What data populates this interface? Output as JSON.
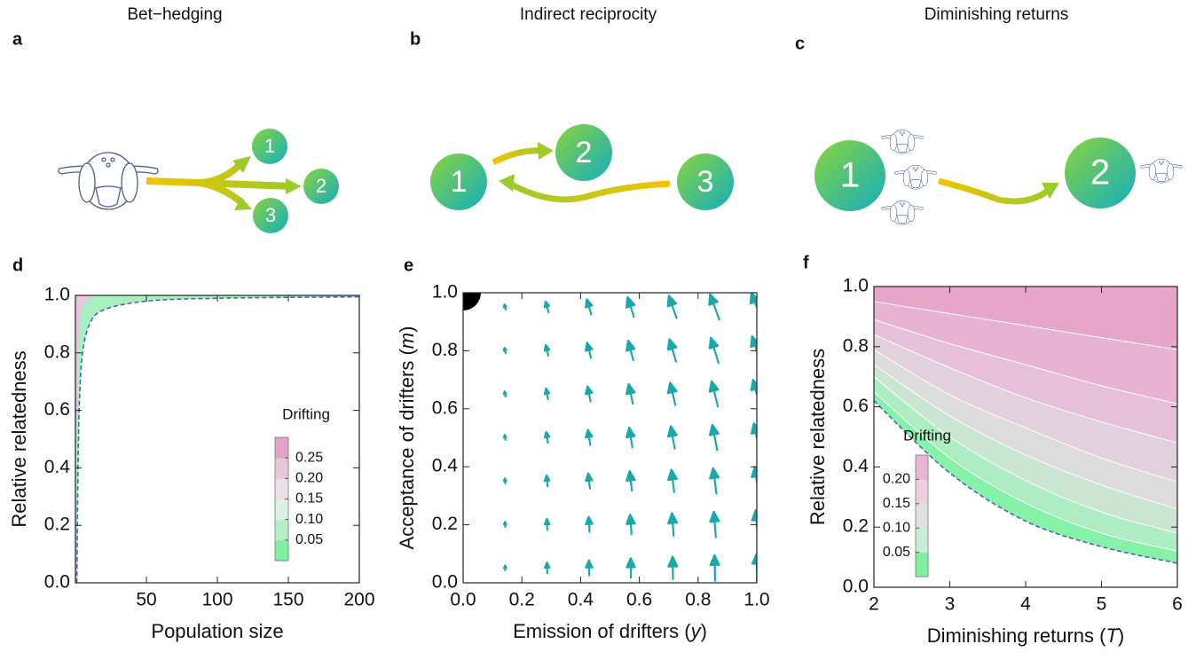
{
  "diagrams": [
    {
      "label": "a",
      "title": "Bet−hedging",
      "nodes": [
        "1",
        "2",
        "3"
      ]
    },
    {
      "label": "b",
      "title": "Indirect reciprocity",
      "nodes": [
        "1",
        "2",
        "3"
      ]
    },
    {
      "label": "c",
      "title": "Diminishing returns",
      "nodes": [
        "1",
        "2"
      ]
    }
  ],
  "chart_data": [
    {
      "type": "contour",
      "panel": "d",
      "x_label": [
        "Population size"
      ],
      "y_label": [
        "Relative relatedness"
      ],
      "x": [
        1,
        2,
        3,
        5,
        10,
        20,
        50,
        100,
        200
      ],
      "series": [
        {
          "color": "#a8f0c0",
          "dashed": true,
          "values": [
            0,
            0.45,
            0.65,
            0.8,
            0.9,
            0.95,
            0.98,
            0.99,
            0.995
          ]
        },
        {
          "color": "#ecc4dc",
          "values": [
            0.55,
            0.8,
            0.9,
            0.96,
            0.99,
            1,
            1,
            1,
            1
          ]
        }
      ],
      "xlim": [
        0,
        200
      ],
      "xticks": [
        50,
        100,
        150,
        200
      ],
      "ylim": [
        0,
        1
      ],
      "yticks": [
        {
          "value": 0,
          "label": "0.0"
        },
        0.2,
        0.4,
        0.6,
        0.8,
        {
          "value": 1,
          "label": "1.0"
        }
      ],
      "colorbar": {
        "title": "Drifting",
        "lim": [
          0,
          0.3
        ],
        "ticks": [
          0.05,
          {
            "value": 0.1,
            "label": "0.10"
          },
          0.15,
          {
            "value": 0.2,
            "label": "0.20"
          },
          0.25
        ],
        "colors": [
          "#7ff0a0",
          "#b3f0c6",
          "#dcf0e3",
          "#ecdfe8",
          "#e9c6dc",
          "#e3a3c9"
        ]
      }
    },
    {
      "type": "quiver",
      "panel": "e",
      "x_label": [
        "Emission of drifters (",
        "y",
        ")"
      ],
      "y_label": [
        "Acceptance of drifters (",
        "m",
        ")"
      ],
      "color": "#1aa8a8",
      "xlim": [
        0,
        1
      ],
      "xticks": [
        {
          "value": 0,
          "label": "0.0"
        },
        0.2,
        0.4,
        0.6,
        0.8,
        {
          "value": 1,
          "label": "1.0"
        }
      ],
      "ylim": [
        0,
        1
      ],
      "yticks": [
        {
          "value": 0,
          "label": "0.0"
        },
        0.2,
        0.4,
        0.6,
        0.8,
        {
          "value": 1,
          "label": "1.0"
        }
      ],
      "x_grid": [
        0.143,
        0.286,
        0.429,
        0.571,
        0.714,
        0.857,
        1.0
      ],
      "y_grid": [
        0.05,
        0.2,
        0.35,
        0.5,
        0.65,
        0.8,
        0.95
      ],
      "u": [
        [
          0,
          -0.001,
          -0.001,
          -0.001,
          -0.001,
          -0.002,
          -0.002
        ],
        [
          -0.001,
          -0.002,
          -0.003,
          -0.005,
          -0.006,
          -0.007,
          -0.008
        ],
        [
          -0.002,
          -0.004,
          -0.006,
          -0.008,
          -0.01,
          -0.012,
          -0.014
        ],
        [
          -0.003,
          -0.006,
          -0.009,
          -0.011,
          -0.014,
          -0.017,
          -0.02
        ],
        [
          -0.004,
          -0.007,
          -0.011,
          -0.015,
          -0.019,
          -0.022,
          -0.026
        ],
        [
          -0.005,
          -0.009,
          -0.014,
          -0.018,
          -0.023,
          -0.027,
          -0.032
        ],
        [
          -0.005,
          -0.011,
          -0.016,
          -0.022,
          -0.027,
          -0.033,
          -0.038
        ]
      ],
      "v": [
        [
          0.02,
          0.04,
          0.055,
          0.07,
          0.08,
          0.09,
          0.1
        ],
        [
          0.02,
          0.04,
          0.055,
          0.07,
          0.08,
          0.09,
          0.1
        ],
        [
          0.02,
          0.04,
          0.055,
          0.07,
          0.08,
          0.09,
          0.1
        ],
        [
          0.02,
          0.04,
          0.055,
          0.07,
          0.08,
          0.09,
          0.1
        ],
        [
          0.02,
          0.04,
          0.055,
          0.07,
          0.08,
          0.09,
          0.1
        ],
        [
          0.02,
          0.04,
          0.055,
          0.07,
          0.08,
          0.09,
          0.1
        ],
        [
          0.02,
          0.04,
          0.055,
          0.07,
          0.08,
          0.09,
          0.1
        ]
      ],
      "stable_point": {
        "x": 0,
        "y": 1
      }
    },
    {
      "type": "contour",
      "panel": "f",
      "x_label": [
        "Diminishing returns (",
        "T",
        ")"
      ],
      "y_label": [
        "Relative relatedness"
      ],
      "x": [
        2,
        3,
        4,
        5,
        6
      ],
      "line_color": "#ffffff",
      "series": [
        {
          "color": "#86f2a8",
          "dashed": true,
          "values": [
            0.62,
            0.38,
            0.22,
            0.135,
            0.08
          ]
        },
        {
          "color": "#aeecc2",
          "values": [
            0.65,
            0.43,
            0.28,
            0.18,
            0.12
          ]
        },
        {
          "color": "#cae6d3",
          "values": [
            0.7,
            0.5,
            0.355,
            0.25,
            0.18
          ]
        },
        {
          "color": "#dcdcdc",
          "values": [
            0.74,
            0.57,
            0.44,
            0.34,
            0.26
          ]
        },
        {
          "color": "#e2d0dc",
          "values": [
            0.79,
            0.64,
            0.53,
            0.43,
            0.35
          ]
        },
        {
          "color": "#e6c0d8",
          "values": [
            0.84,
            0.73,
            0.63,
            0.55,
            0.48
          ]
        },
        {
          "color": "#e8b3d2",
          "values": [
            0.89,
            0.81,
            0.74,
            0.67,
            0.61
          ]
        },
        {
          "color": "#e6a5c9",
          "values": [
            0.95,
            0.91,
            0.87,
            0.83,
            0.79
          ]
        }
      ],
      "xlim": [
        2,
        6
      ],
      "xticks": [
        2,
        3,
        4,
        5,
        6
      ],
      "ylim": [
        0,
        1
      ],
      "yticks": [
        {
          "value": 0,
          "label": "0.0"
        },
        0.2,
        0.4,
        0.6,
        0.8,
        {
          "value": 1,
          "label": "1.0"
        }
      ],
      "colorbar": {
        "title": "Drifting",
        "lim": [
          0,
          0.25
        ],
        "ticks": [
          0.05,
          {
            "value": 0.1,
            "label": "0.10"
          },
          0.15,
          {
            "value": 0.2,
            "label": "0.20"
          }
        ],
        "colors": [
          "#7ff0a0",
          "#c4efd2",
          "#e0e0e0",
          "#ebcfe0",
          "#e9b5d5"
        ]
      }
    }
  ]
}
